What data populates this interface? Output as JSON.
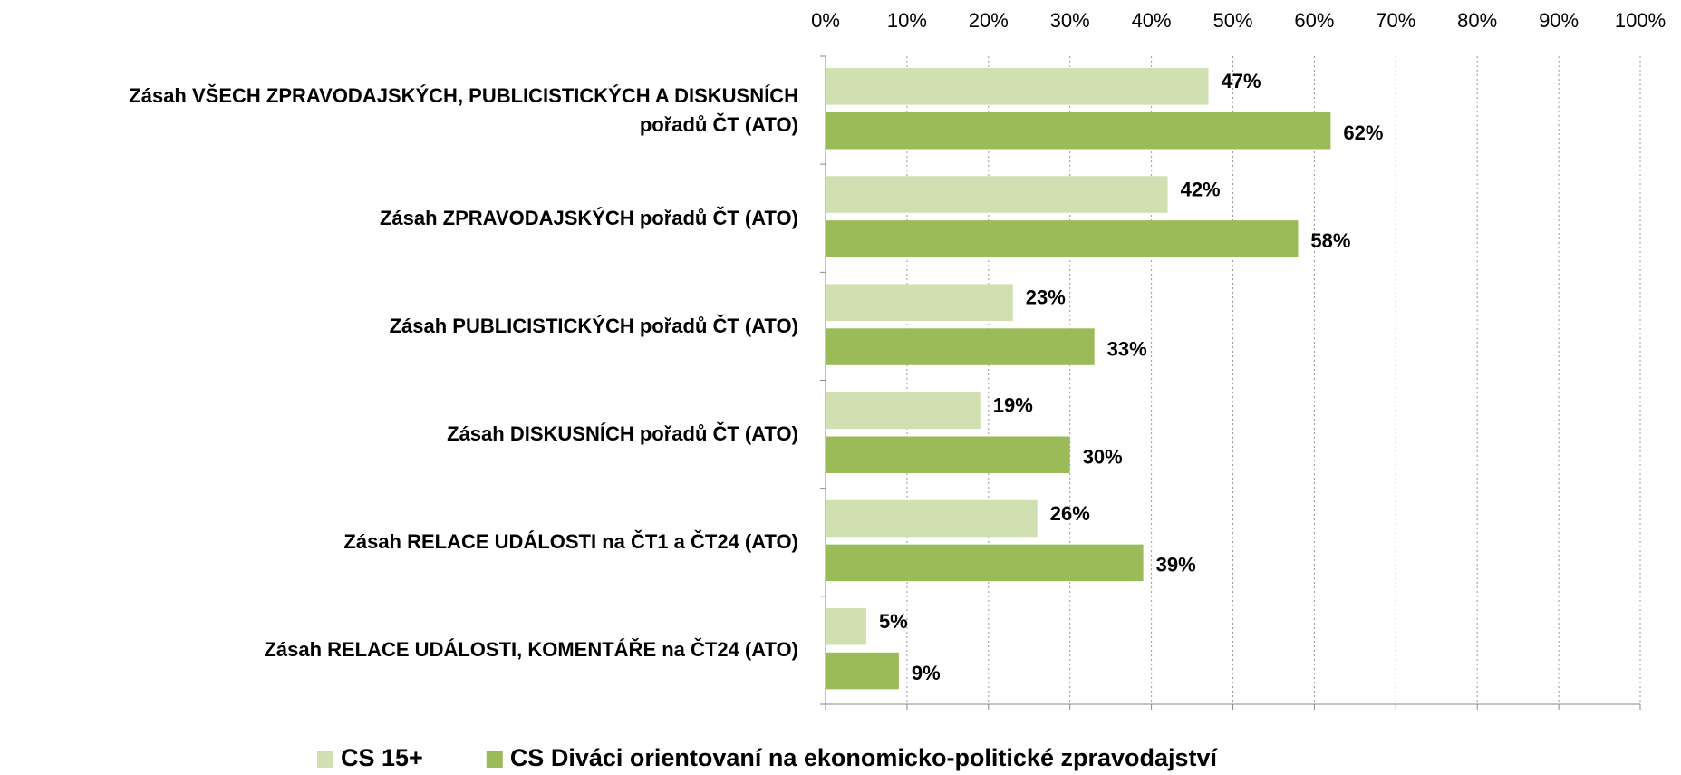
{
  "chart_data": {
    "type": "hbar",
    "categories": [
      "Zásah VŠECH ZPRAVODAJSKÝCH, PUBLICISTICKÝCH A DISKUSNÍCH pořadů ČT (ATO)",
      "Zásah ZPRAVODAJSKÝCH pořadů ČT (ATO)",
      "Zásah PUBLICISTICKÝCH pořadů ČT (ATO)",
      "Zásah DISKUSNÍCH pořadů ČT (ATO)",
      "Zásah RELACE UDÁLOSTI na ČT1 a ČT24 (ATO)",
      "Zásah RELACE UDÁLOSTI, KOMENTÁŘE na ČT24 (ATO)"
    ],
    "series": [
      {
        "name": "CS 15+",
        "color": "#d0e0b0",
        "values": [
          47,
          42,
          23,
          19,
          26,
          5
        ],
        "value_labels": [
          "47%",
          "42%",
          "23%",
          "19%",
          "26%",
          "5%"
        ]
      },
      {
        "name": "CS Diváci orientovaní na ekonomicko-politické zpravodajství",
        "color": "#9bbb59",
        "values": [
          62,
          58,
          33,
          30,
          39,
          9
        ],
        "value_labels": [
          "62%",
          "58%",
          "33%",
          "30%",
          "39%",
          "9%"
        ]
      }
    ],
    "xlim": [
      0,
      100
    ],
    "xticks": [
      {
        "value": 0,
        "label": "0%"
      },
      {
        "value": 10,
        "label": "10%"
      },
      {
        "value": 20,
        "label": "20%"
      },
      {
        "value": 30,
        "label": "30%"
      },
      {
        "value": 40,
        "label": "40%"
      },
      {
        "value": 50,
        "label": "50%"
      },
      {
        "value": 60,
        "label": "60%"
      },
      {
        "value": 70,
        "label": "70%"
      },
      {
        "value": 80,
        "label": "80%"
      },
      {
        "value": 90,
        "label": "90%"
      },
      {
        "value": 100,
        "label": "100%"
      }
    ],
    "grid": true,
    "legend": "bottom"
  }
}
